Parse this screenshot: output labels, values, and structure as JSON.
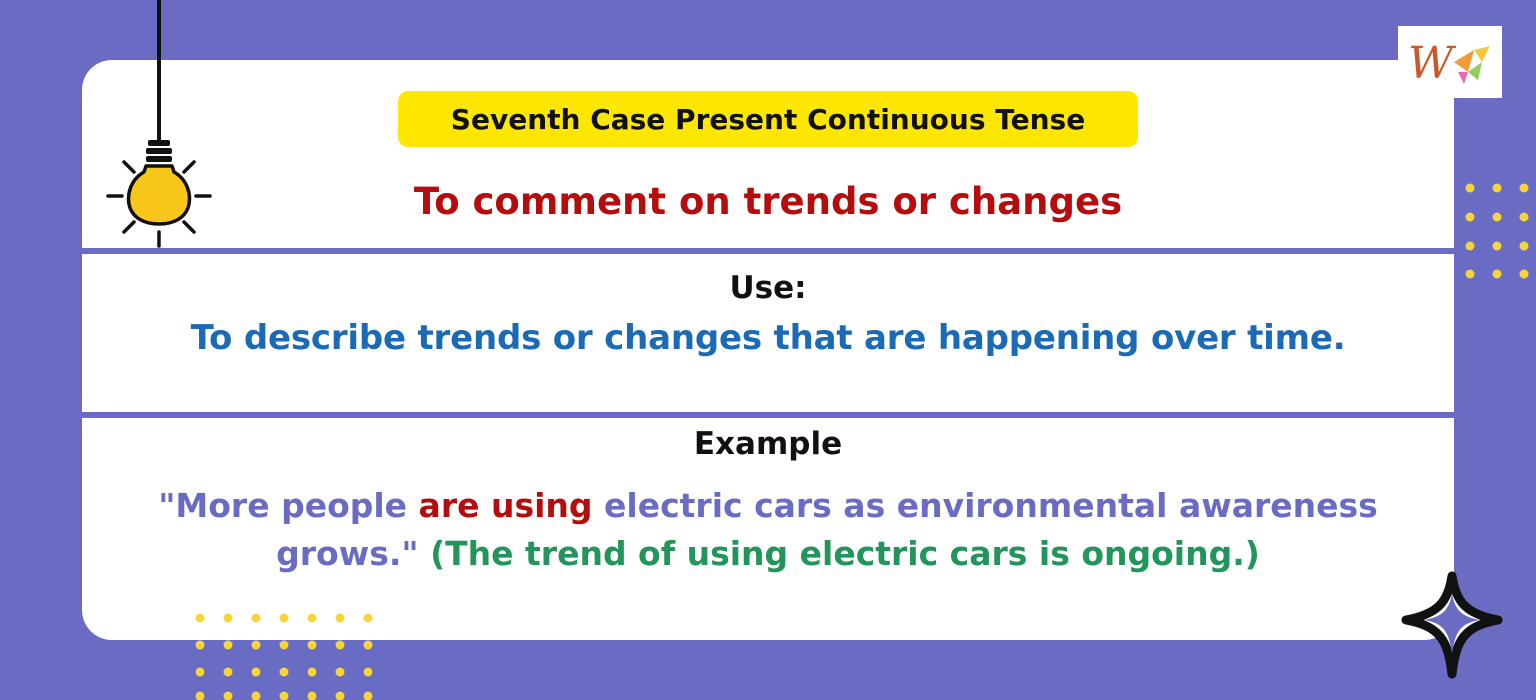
{
  "title": "Seventh Case Present Continuous Tense",
  "subtitle": "To comment on trends or changes",
  "use": {
    "label": "Use:",
    "text": "To describe trends or changes that are happening over time."
  },
  "example": {
    "label": "Example",
    "part1": "\"More people ",
    "highlight": "are using",
    "part2": " electric cars as environmental awareness grows.\" ",
    "note": "(The trend of using electric cars is ongoing.)"
  },
  "logo": {
    "text": "W"
  },
  "colors": {
    "background": "#6a6cc4",
    "title_highlight": "#fde600",
    "subtitle_red": "#b50d0d",
    "use_blue": "#1a6ab5",
    "example_purple": "#6a6cc4",
    "note_green": "#22955a",
    "dot_yellow": "#f7d43a"
  },
  "icons": [
    "lightbulb-icon",
    "sparkle-icon",
    "logo-icon"
  ]
}
